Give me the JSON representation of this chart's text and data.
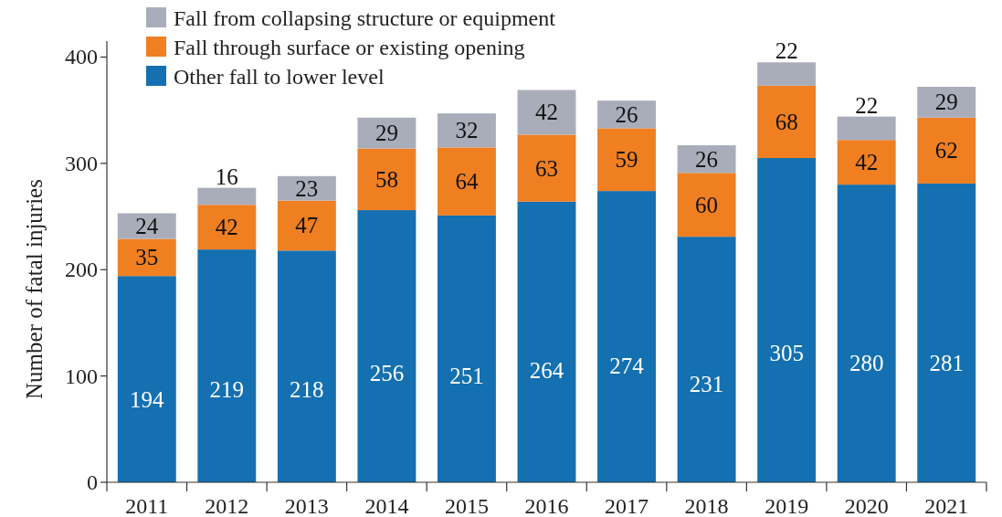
{
  "chart_data": {
    "type": "bar",
    "stacked": true,
    "ylabel": "Number of fatal injuries",
    "categories": [
      "2011",
      "2012",
      "2013",
      "2014",
      "2015",
      "2016",
      "2017",
      "2018",
      "2019",
      "2020",
      "2021"
    ],
    "series": [
      {
        "name": "Other fall to lower level",
        "color": "#1470b0",
        "values": [
          194,
          219,
          218,
          256,
          251,
          264,
          274,
          231,
          305,
          280,
          281
        ]
      },
      {
        "name": "Fall through surface or existing opening",
        "color": "#f07f22",
        "values": [
          35,
          42,
          47,
          58,
          64,
          63,
          59,
          60,
          68,
          42,
          62
        ]
      },
      {
        "name": "Fall from collapsing structure or equipment",
        "color": "#a9adb9",
        "values": [
          24,
          16,
          23,
          29,
          32,
          42,
          26,
          26,
          22,
          22,
          29
        ]
      }
    ],
    "ylim": [
      0,
      415
    ],
    "yticks": [
      0,
      100,
      200,
      300,
      400
    ],
    "grid": false,
    "legend": "top left",
    "data_labels": true
  }
}
